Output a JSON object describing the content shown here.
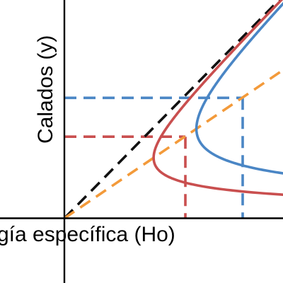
{
  "chart_data": {
    "type": "line",
    "title": "",
    "xlabel": "gía específica (Ho)",
    "ylabel": "Calados (y)",
    "grid": false,
    "legend": "none",
    "colors": {
      "red": "#c94f4f",
      "blue": "#4a86c5",
      "orange": "#f39a3a",
      "black": "#111111",
      "axis": "#000000"
    },
    "curves": [
      {
        "name": "",
        "kind": "specific-energy",
        "q": 1.0,
        "color_key": "red"
      },
      {
        "name": "",
        "kind": "specific-energy",
        "q": 1.8,
        "color_key": "blue"
      }
    ],
    "reference_lines": [
      {
        "name": "",
        "kind": "E=y",
        "color_key": "black",
        "dashed": true
      },
      {
        "name": "",
        "kind": "critical-line E=1.5y",
        "color_key": "orange",
        "dashed": true
      }
    ],
    "critical_points": [
      {
        "curve": 0,
        "critical_depth": 0.63,
        "min_energy": 0.95
      },
      {
        "curve": 1,
        "critical_depth": 0.93,
        "min_energy": 1.4
      }
    ],
    "xlim": [
      0,
      1.72
    ],
    "ylim": [
      0,
      1.69
    ]
  }
}
